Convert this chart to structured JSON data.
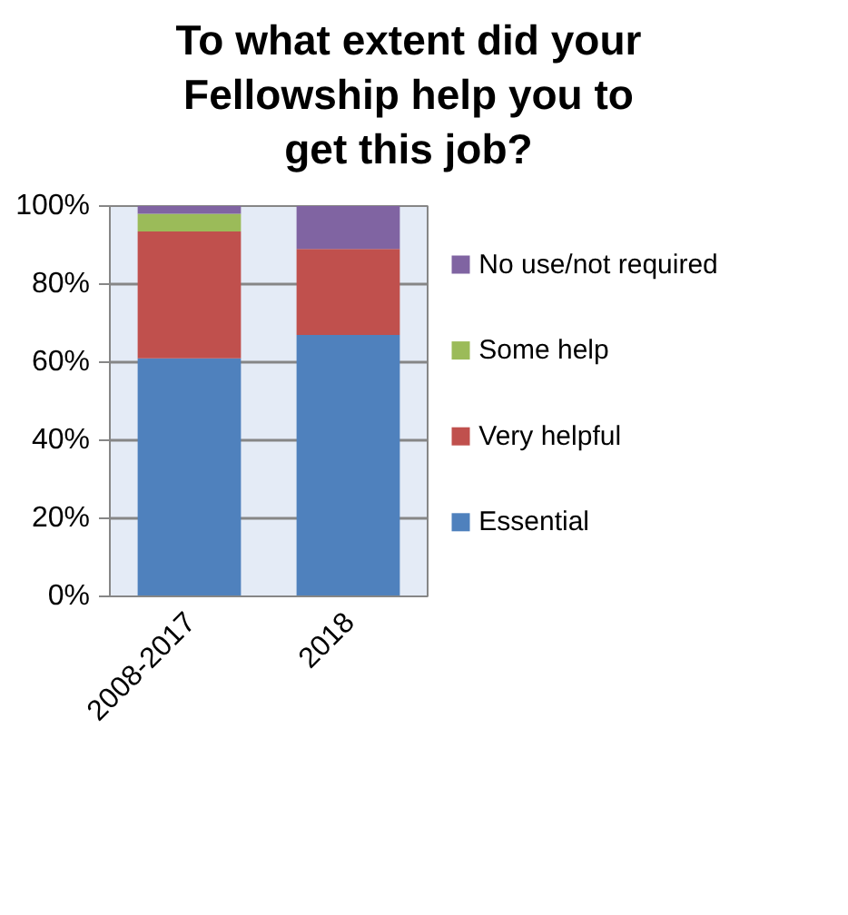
{
  "chart_data": {
    "type": "bar",
    "title": "To what extent did your Fellowship help you to get this job?",
    "categories": [
      "2008-2017",
      "2018"
    ],
    "stacked": true,
    "ylim": [
      0,
      100
    ],
    "yticks": [
      {
        "value": 0,
        "label": "0%"
      },
      {
        "value": 20,
        "label": "20%"
      },
      {
        "value": 40,
        "label": "40%"
      },
      {
        "value": 60,
        "label": "60%"
      },
      {
        "value": 80,
        "label": "80%"
      },
      {
        "value": 100,
        "label": "100%"
      }
    ],
    "grid": "y",
    "legend": "right",
    "series": [
      {
        "name": "Essential",
        "color": "#4f81bd",
        "values": [
          61,
          67
        ]
      },
      {
        "name": "Very helpful",
        "color": "#c0504d",
        "values": [
          32.5,
          22
        ]
      },
      {
        "name": "Some help",
        "color": "#9bbb59",
        "values": [
          4.5,
          0
        ]
      },
      {
        "name": "No use/not required",
        "color": "#8064a2",
        "values": [
          2,
          11
        ]
      }
    ]
  }
}
